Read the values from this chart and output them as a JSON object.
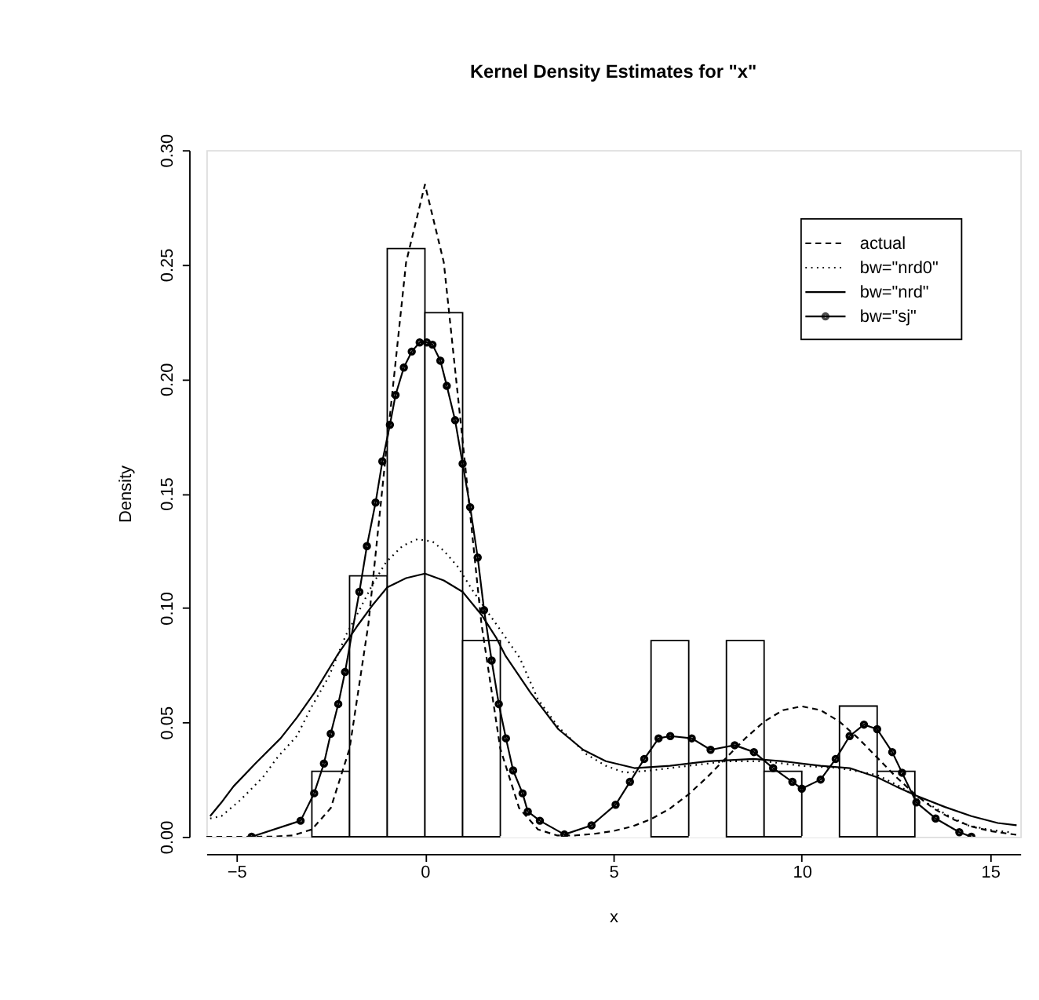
{
  "chart_data": {
    "type": "histogram",
    "title": "Kernel Density Estimates for \"x\"",
    "xlabel": "x",
    "ylabel": "Density",
    "bins": [
      -3,
      -2,
      -1,
      0,
      1,
      2,
      3,
      4,
      5,
      6,
      7,
      8,
      9,
      10,
      11,
      12,
      13
    ],
    "values": [
      0.0286,
      0.114,
      0.257,
      0.229,
      0.0857,
      0,
      0,
      0,
      0,
      0.0857,
      0,
      0.0857,
      0.0286,
      0,
      0.0571,
      0.0286
    ],
    "color": "#ffffff",
    "series": [
      {
        "name": "actual",
        "type": "line",
        "line_style": "dashed",
        "marker": "none",
        "color": "#000000",
        "x": [
          -5.8,
          -5.5,
          -5,
          -4.5,
          -4,
          -3.5,
          -3,
          -2.5,
          -2,
          -1.5,
          -1,
          -0.5,
          0,
          0.5,
          1,
          1.5,
          2,
          2.5,
          3,
          3.5,
          4,
          4.5,
          5,
          5.5,
          6,
          6.5,
          7,
          7.5,
          8,
          8.5,
          9,
          9.5,
          10,
          10.5,
          11,
          11.5,
          12,
          12.5,
          13,
          13.5,
          14,
          14.5,
          15,
          15.5,
          15.8
        ],
        "values": [
          0,
          0,
          0,
          0,
          0.0001,
          0.0006,
          0.0032,
          0.0125,
          0.0385,
          0.093,
          0.173,
          0.251,
          0.285,
          0.251,
          0.173,
          0.093,
          0.0385,
          0.0125,
          0.0032,
          0.0006,
          0.0006,
          0.0013,
          0.0025,
          0.0045,
          0.0077,
          0.0123,
          0.0186,
          0.0262,
          0.0346,
          0.043,
          0.0503,
          0.0553,
          0.057,
          0.0553,
          0.0503,
          0.043,
          0.0346,
          0.0262,
          0.0186,
          0.0123,
          0.0077,
          0.0045,
          0.0025,
          0.0013,
          0.0006
        ]
      },
      {
        "name": "bw=\"nrd0\"",
        "type": "line",
        "line_style": "dotted",
        "marker": "none",
        "color": "#000000",
        "x": [
          -5.7,
          -5.4,
          -4.9,
          -4.3,
          -3.9,
          -3.4,
          -3.0,
          -2.55,
          -2.1,
          -1.74,
          -1.4,
          -1.03,
          -0.6,
          -0.2,
          0.2,
          0.5,
          0.87,
          1.25,
          1.63,
          2.1,
          2.52,
          3.0,
          3.54,
          4.29,
          4.8,
          5.3,
          6,
          7,
          8,
          9,
          10,
          11,
          12,
          12.6,
          13.2,
          13.8,
          14.4,
          15.0,
          15.5
        ],
        "values": [
          0.008,
          0.009,
          0.016,
          0.026,
          0.035,
          0.044,
          0.057,
          0.07,
          0.088,
          0.099,
          0.11,
          0.12,
          0.127,
          0.13,
          0.129,
          0.125,
          0.118,
          0.108,
          0.099,
          0.088,
          0.078,
          0.06,
          0.048,
          0.036,
          0.031,
          0.028,
          0.029,
          0.031,
          0.033,
          0.033,
          0.031,
          0.03,
          0.027,
          0.022,
          0.016,
          0.01,
          0.005,
          0.003,
          0.002
        ]
      },
      {
        "name": "bw=\"nrd\"",
        "type": "line",
        "line_style": "solid",
        "marker": "none",
        "color": "#000000",
        "x": [
          -5.7,
          -5.4,
          -5.08,
          -4.5,
          -3.83,
          -3.4,
          -2.93,
          -2.3,
          -1.8,
          -1.4,
          -1,
          -0.5,
          0,
          0.5,
          1,
          1.5,
          1.89,
          2.14,
          2.8,
          3.54,
          4.2,
          4.8,
          5.56,
          6.5,
          7.5,
          8.72,
          9.5,
          10.5,
          11.27,
          12,
          12.5,
          13.03,
          13.8,
          14.5,
          15.2,
          15.7
        ],
        "values": [
          0.009,
          0.015,
          0.022,
          0.032,
          0.043,
          0.052,
          0.063,
          0.08,
          0.092,
          0.101,
          0.109,
          0.113,
          0.115,
          0.112,
          0.107,
          0.097,
          0.087,
          0.079,
          0.063,
          0.047,
          0.038,
          0.033,
          0.03,
          0.031,
          0.033,
          0.034,
          0.033,
          0.031,
          0.03,
          0.026,
          0.022,
          0.018,
          0.013,
          0.009,
          0.006,
          0.005
        ]
      },
      {
        "name": "bw=\"sj\"",
        "type": "line",
        "line_style": "solid",
        "marker": "circle",
        "color": "#000000",
        "x": [
          -4.6,
          -3.3,
          -2.94,
          -2.68,
          -2.5,
          -2.3,
          -2.12,
          -1.74,
          -1.54,
          -1.31,
          -1.13,
          -0.93,
          -0.78,
          -0.56,
          -0.35,
          -0.14,
          0.05,
          0.2,
          0.41,
          0.58,
          0.8,
          1.0,
          1.2,
          1.4,
          1.57,
          1.77,
          1.96,
          2.15,
          2.34,
          2.59,
          2.73,
          3.05,
          3.7,
          4.42,
          5.06,
          5.44,
          5.82,
          6.2,
          6.51,
          7.08,
          7.58,
          8.22,
          8.73,
          9.24,
          9.75,
          10.0,
          10.5,
          10.9,
          11.27,
          11.65,
          12.0,
          12.4,
          12.66,
          13.04,
          13.55,
          14.18,
          14.5
        ],
        "values": [
          0,
          0.007,
          0.019,
          0.032,
          0.045,
          0.058,
          0.072,
          0.107,
          0.127,
          0.146,
          0.164,
          0.18,
          0.193,
          0.205,
          0.212,
          0.216,
          0.216,
          0.215,
          0.208,
          0.197,
          0.182,
          0.163,
          0.144,
          0.122,
          0.099,
          0.077,
          0.058,
          0.043,
          0.029,
          0.019,
          0.011,
          0.007,
          0.001,
          0.005,
          0.014,
          0.024,
          0.034,
          0.043,
          0.044,
          0.043,
          0.038,
          0.04,
          0.037,
          0.03,
          0.024,
          0.021,
          0.025,
          0.034,
          0.044,
          0.049,
          0.047,
          0.037,
          0.028,
          0.015,
          0.008,
          0.002,
          0
        ]
      }
    ],
    "xlim": [
      -5.8,
      15.8
    ],
    "xticks": [
      -5,
      0,
      5,
      10,
      15
    ],
    "ylim": [
      0,
      0.3
    ],
    "yticks": [
      {
        "value": 0,
        "label": "0.00"
      },
      {
        "value": 0.05,
        "label": "0.05"
      },
      {
        "value": 0.1,
        "label": "0.10"
      },
      {
        "value": 0.15,
        "label": "0.15"
      },
      {
        "value": 0.2,
        "label": "0.20"
      },
      {
        "value": 0.25,
        "label": "0.25"
      },
      {
        "value": 0.3,
        "label": "0.30"
      }
    ],
    "grid": false,
    "legend": "top right"
  }
}
